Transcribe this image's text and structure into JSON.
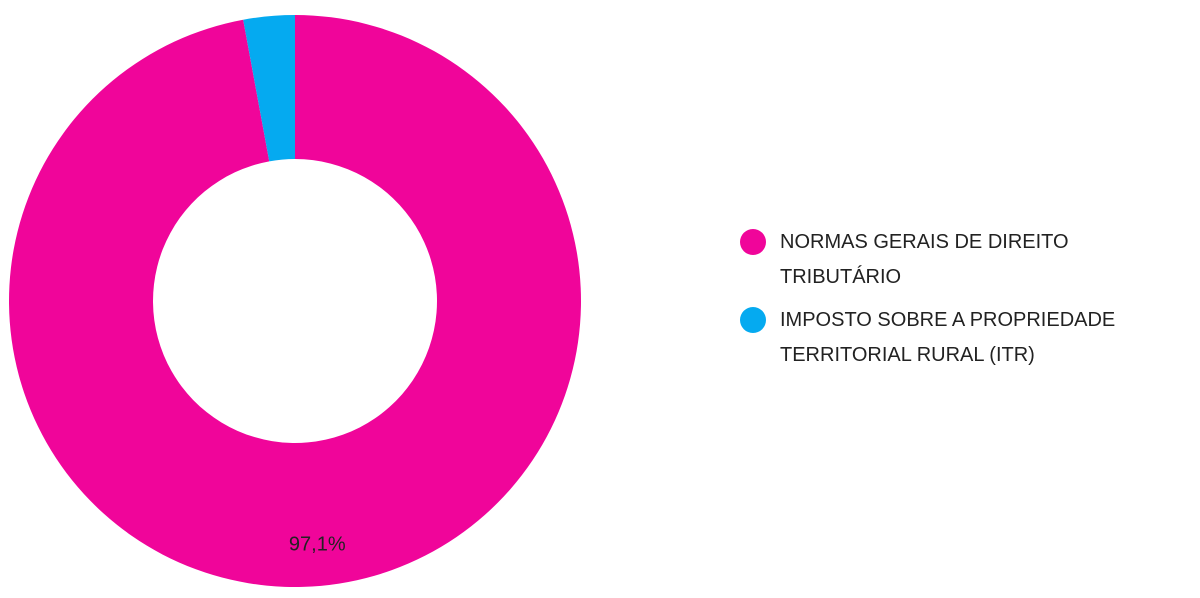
{
  "chart_data": {
    "type": "donut",
    "categories": [
      "NORMAS GERAIS DE DIREITO TRIBUTÁRIO",
      "IMPOSTO SOBRE A PROPRIEDADE TERRITORIAL RURAL (ITR)"
    ],
    "values": [
      97.1,
      2.9
    ],
    "value_labels": [
      "97,1%",
      null
    ],
    "colors": [
      "#f0059a",
      "#05aaf0"
    ],
    "legend": "right"
  }
}
